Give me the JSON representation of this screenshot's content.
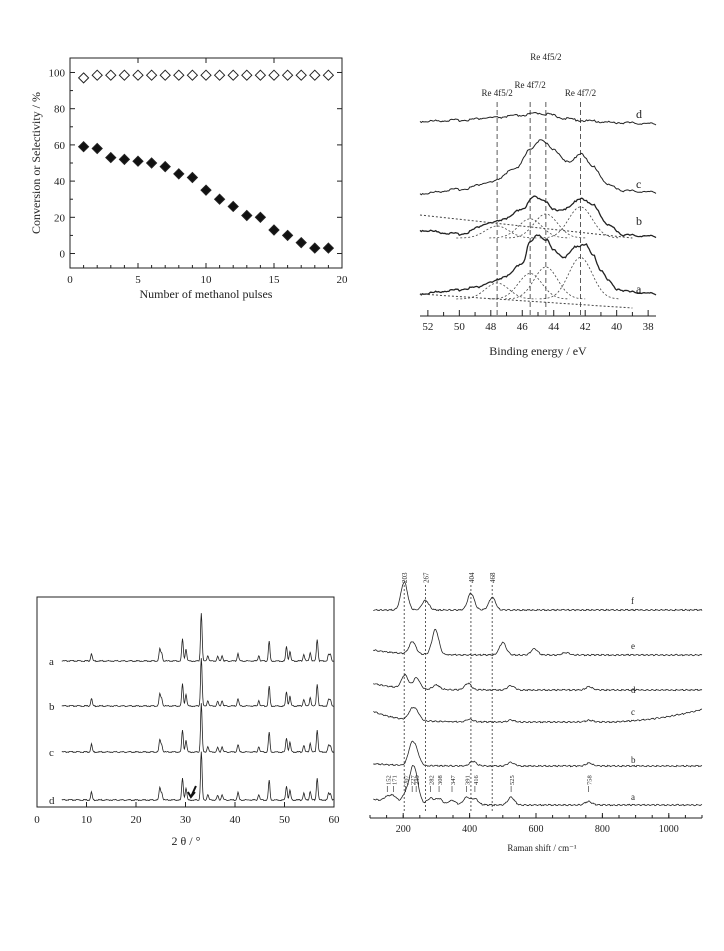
{
  "chart_data": [
    {
      "type": "scatter",
      "title": "",
      "xlabel": "Number of methanol pulses",
      "ylabel": "Conversion or Selectivity / %",
      "xlim": [
        0,
        20
      ],
      "ylim": [
        -8,
        108
      ],
      "xticks": [
        0,
        5,
        10,
        15,
        20
      ],
      "yticks": [
        0,
        20,
        40,
        60,
        80,
        100
      ],
      "series": [
        {
          "marker": "open-diamond",
          "x": [
            1,
            2,
            3,
            4,
            5,
            6,
            7,
            8,
            9,
            10,
            11,
            12,
            13,
            14,
            15,
            16,
            17,
            18,
            19
          ],
          "y": [
            97,
            98.5,
            98.5,
            98.5,
            98.5,
            98.5,
            98.5,
            98.5,
            98.5,
            98.5,
            98.5,
            98.5,
            98.5,
            98.5,
            98.5,
            98.5,
            98.5,
            98.5,
            98.5
          ]
        },
        {
          "marker": "filled-diamond",
          "x": [
            1,
            2,
            3,
            4,
            5,
            6,
            7,
            8,
            9,
            10,
            11,
            12,
            13,
            14,
            15,
            16,
            17,
            18,
            19
          ],
          "y": [
            59,
            58,
            53,
            52,
            51,
            50,
            48,
            44,
            42,
            35,
            30,
            26,
            21,
            20,
            13,
            10,
            6,
            3,
            3
          ]
        }
      ]
    },
    {
      "type": "line",
      "xlabel": "Binding energy / eV",
      "xlim": [
        52.5,
        37.5
      ],
      "xticks": [
        52,
        50,
        48,
        46,
        44,
        42,
        40,
        38
      ],
      "peak_labels": [
        "Re 4f5/2",
        "Re 4f7/2",
        "Re 4f5/2",
        "Re 4f7/2"
      ],
      "peak_positions": [
        47.6,
        45.5,
        44.5,
        42.3
      ],
      "curve_labels": [
        "d",
        "c",
        "b",
        "a"
      ],
      "series": [
        {
          "name": "d",
          "x": [
            52.5,
            50,
            48,
            46,
            45,
            44.5,
            43,
            42,
            40,
            37.5
          ],
          "y": [
            0.3,
            0.4,
            0.6,
            0.8,
            1.0,
            0.9,
            0.5,
            0.35,
            0.2,
            0.1
          ]
        },
        {
          "name": "c",
          "x": [
            52.5,
            50,
            48,
            46.5,
            45.5,
            44.8,
            44,
            43,
            42.3,
            41.5,
            40.5,
            39.5,
            37.5
          ],
          "y": [
            0.1,
            0.4,
            0.9,
            1.8,
            3.2,
            4.0,
            3.2,
            2.3,
            3.0,
            2.0,
            0.7,
            0.3,
            0.2
          ]
        },
        {
          "name": "b",
          "x": [
            52.5,
            50,
            48,
            47,
            46,
            45.2,
            44.7,
            44,
            43.2,
            42.3,
            41.5,
            40.5,
            39.5,
            37.5
          ],
          "y": [
            0.8,
            0.5,
            1.4,
            1.8,
            2.6,
            3.6,
            3.4,
            2.5,
            2.6,
            3.5,
            2.9,
            1.2,
            0.4,
            0.3
          ]
        },
        {
          "name": "a",
          "x": [
            52.5,
            50.5,
            49,
            48,
            47,
            46,
            45.5,
            45,
            44.5,
            44,
            43.3,
            42.5,
            42,
            41.5,
            41,
            40.5,
            40,
            39,
            37.5
          ],
          "y": [
            0.2,
            0.4,
            0.6,
            0.9,
            1.3,
            2.1,
            3.4,
            3.9,
            3.6,
            2.9,
            2.5,
            3.2,
            3.3,
            2.6,
            1.7,
            1.0,
            0.5,
            0.3,
            0.2
          ]
        }
      ]
    },
    {
      "type": "line",
      "xlabel": "2 θ / °",
      "xlim": [
        0,
        60
      ],
      "xticks": [
        0,
        10,
        20,
        30,
        40,
        50,
        60
      ],
      "curve_labels": [
        "a",
        "b",
        "c",
        "d"
      ],
      "peaks": [
        [
          11,
          0.35
        ],
        [
          24.8,
          0.55
        ],
        [
          25.2,
          0.35
        ],
        [
          29.4,
          1.0
        ],
        [
          30.1,
          0.55
        ],
        [
          33.2,
          2.2
        ],
        [
          34.5,
          0.25
        ],
        [
          36.5,
          0.2
        ],
        [
          37.4,
          0.25
        ],
        [
          40.6,
          0.35
        ],
        [
          44.8,
          0.25
        ],
        [
          46.9,
          0.9
        ],
        [
          50.4,
          0.65
        ],
        [
          51.1,
          0.45
        ],
        [
          53.9,
          0.3
        ],
        [
          55.2,
          0.4
        ],
        [
          56.6,
          1.0
        ],
        [
          58.9,
          0.3
        ],
        [
          59.3,
          0.3
        ]
      ],
      "peak_heights_by_curve": [
        [
          0.35,
          0.55,
          0.35,
          1.0,
          0.55,
          2.2,
          0.25,
          0.2,
          0.25,
          0.35,
          0.25,
          0.9,
          0.65,
          0.45,
          0.3,
          0.4,
          1.0,
          0.3,
          0.3
        ],
        [
          0.35,
          0.55,
          0.35,
          1.0,
          0.55,
          2.2,
          0.25,
          0.2,
          0.25,
          0.35,
          0.25,
          0.9,
          0.65,
          0.45,
          0.3,
          0.4,
          1.0,
          0.3,
          0.3
        ],
        [
          0.35,
          0.55,
          0.35,
          1.0,
          0.55,
          2.2,
          0.25,
          0.2,
          0.25,
          0.35,
          0.25,
          0.9,
          0.65,
          0.45,
          0.3,
          0.4,
          1.0,
          0.3,
          0.3
        ],
        [
          0.35,
          0.55,
          0.35,
          1.0,
          0.55,
          2.2,
          0.25,
          0.2,
          0.25,
          0.35,
          0.25,
          0.9,
          0.65,
          0.45,
          0.3,
          0.4,
          1.0,
          0.3,
          0.3
        ]
      ],
      "arrow_at": 31.5
    },
    {
      "type": "line",
      "xlabel": "Raman shift / cm⁻¹",
      "xlim": [
        100,
        1100
      ],
      "xticks": [
        200,
        400,
        600,
        800,
        1000
      ],
      "curve_labels": [
        "f",
        "e",
        "d",
        "c",
        "b",
        "a"
      ],
      "reference_lines": [
        203,
        267,
        404,
        468
      ],
      "reference_labels": [
        "203",
        "267",
        "404",
        "468"
      ],
      "a_peak_labels": [
        "152",
        "171",
        "207",
        "227",
        "239",
        "282",
        "308",
        "347",
        "391",
        "416",
        "525",
        "758"
      ],
      "a_peak_positions": [
        152,
        171,
        207,
        227,
        239,
        282,
        308,
        347,
        391,
        416,
        525,
        758
      ],
      "series": [
        {
          "name": "f",
          "peaks": [
            [
              203,
              1.0
            ],
            [
              267,
              0.35
            ],
            [
              404,
              0.6
            ],
            [
              468,
              0.45
            ]
          ],
          "baseline": [
            0,
            0
          ]
        },
        {
          "name": "e",
          "peaks": [
            [
              228,
              0.5
            ],
            [
              297,
              1.0
            ],
            [
              500,
              0.5
            ],
            [
              595,
              0.25
            ],
            [
              690,
              0.1
            ]
          ],
          "baseline": [
            0.2,
            0
          ]
        },
        {
          "name": "d",
          "peaks": [
            [
              205,
              0.6
            ],
            [
              240,
              0.5
            ],
            [
              300,
              0.2
            ],
            [
              395,
              0.3
            ],
            [
              525,
              0.2
            ],
            [
              760,
              0.15
            ]
          ],
          "baseline": [
            0.3,
            0.05
          ]
        },
        {
          "name": "c",
          "peaks": [
            [
              225,
              0.5
            ],
            [
              240,
              0.45
            ],
            [
              400,
              0.15
            ],
            [
              525,
              0.1
            ],
            [
              760,
              0.1
            ]
          ],
          "baseline": [
            0.6,
            0.7
          ]
        },
        {
          "name": "b",
          "peaks": [
            [
              225,
              0.8
            ],
            [
              240,
              0.5
            ],
            [
              410,
              0.2
            ],
            [
              525,
              0.15
            ],
            [
              760,
              0.12
            ]
          ],
          "baseline": [
            0.1,
            0.05
          ]
        },
        {
          "name": "a",
          "peaks": [
            [
              152,
              0.15
            ],
            [
              171,
              0.2
            ],
            [
              207,
              0.3
            ],
            [
              227,
              0.9
            ],
            [
              239,
              0.6
            ],
            [
              282,
              0.2
            ],
            [
              308,
              0.2
            ],
            [
              347,
              0.15
            ],
            [
              391,
              0.25
            ],
            [
              416,
              0.2
            ],
            [
              525,
              0.25
            ],
            [
              758,
              0.12
            ]
          ],
          "baseline": [
            0.2,
            0
          ]
        }
      ]
    }
  ]
}
